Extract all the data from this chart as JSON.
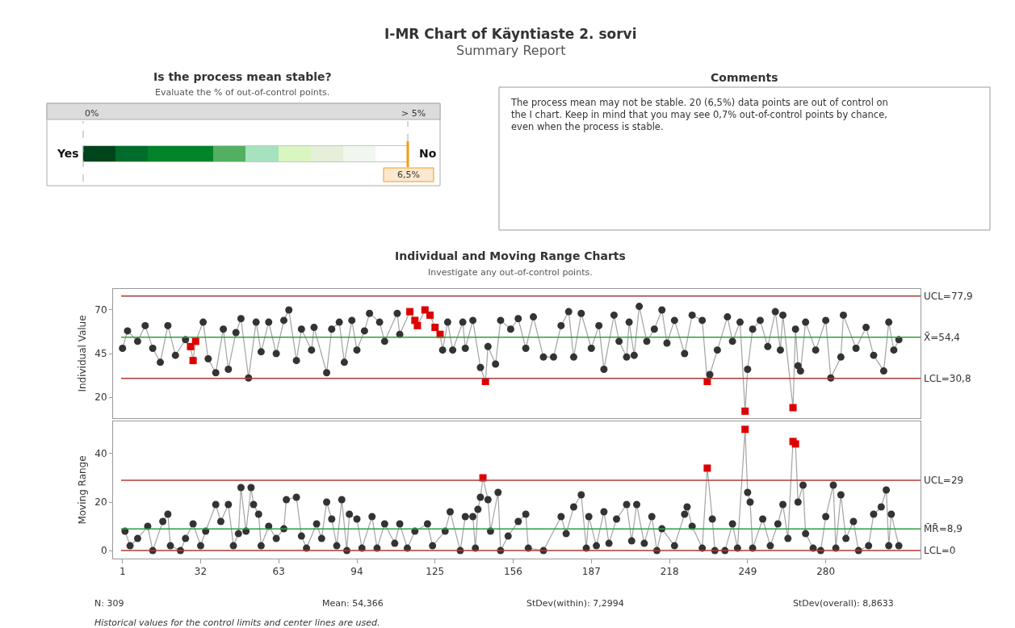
{
  "chart_data": [
    {
      "type": "other",
      "title": "I-MR Chart of Käyntiaste 2. sorvi",
      "subtitle": "Summary Report"
    },
    {
      "type": "other",
      "title": "Is the process mean stable?",
      "subtitle": "Evaluate the % of out-of-control points.",
      "annotations": [
        "0%",
        "> 5%",
        "Yes",
        "No",
        "6,5%"
      ]
    },
    {
      "type": "other",
      "title": "Comments",
      "annotations": [
        "The process mean may not be stable. 20 (6,5%) data points are out of control on the I chart. Keep in mind that you may see 0,7% out-of-control points by chance, even when the process is stable."
      ]
    },
    {
      "type": "line",
      "title": "Individual and Moving Range Charts",
      "subtitle": "Investigate any out-of-control points.",
      "ylabel": "Individual Value",
      "xlim": [
        -2.75,
        317.6
      ],
      "ylim": [
        8,
        82
      ],
      "yticks": [
        20,
        45,
        70
      ],
      "tick_labels": "y",
      "marker": "circle",
      "line_style": "solid",
      "series": [
        {
          "color": "#333333",
          "x": [
            1,
            3,
            7,
            10,
            13,
            16,
            19,
            22,
            26,
            28,
            29,
            30,
            33,
            35,
            38,
            41,
            43,
            46,
            48,
            51,
            54,
            56,
            59,
            62,
            65,
            67,
            70,
            72,
            76,
            77,
            82,
            84,
            87,
            89,
            92,
            94,
            97,
            99,
            103,
            105,
            110,
            111,
            115,
            117,
            118,
            121,
            123,
            125,
            127,
            128,
            130,
            132,
            136,
            137,
            140,
            143,
            145,
            146,
            149,
            151,
            155,
            158,
            161,
            164,
            168,
            172,
            175,
            178,
            180,
            183,
            187,
            190,
            192,
            196,
            198,
            201,
            202,
            204,
            206,
            209,
            212,
            215,
            217,
            220,
            224,
            227,
            231,
            233,
            234,
            237,
            241,
            243,
            246,
            248,
            249,
            251,
            254,
            257,
            260,
            262,
            263,
            267,
            268,
            269,
            270,
            272,
            276,
            280,
            282,
            286,
            287,
            292,
            296,
            299,
            303,
            305,
            307,
            309
          ],
          "values": [
            48,
            58,
            52,
            61,
            48,
            40,
            61,
            44,
            53,
            49,
            41,
            52,
            63,
            42,
            34,
            59,
            36,
            57,
            65,
            31,
            63,
            46,
            63,
            45,
            64,
            70,
            41,
            59,
            47,
            60,
            34,
            59,
            63,
            40,
            64,
            47,
            58,
            68,
            63,
            52,
            68,
            56,
            69,
            64,
            61,
            70,
            67,
            60,
            56,
            47,
            63,
            47,
            63,
            48,
            64,
            37,
            29,
            49,
            39,
            64,
            59,
            65,
            48,
            66,
            43,
            43,
            61,
            69,
            43,
            68,
            48,
            61,
            36,
            67,
            52,
            43,
            63,
            44,
            72,
            52,
            59,
            70,
            51,
            64,
            45,
            67,
            64,
            29,
            33,
            47,
            66,
            52,
            63,
            12,
            36,
            59,
            64,
            49,
            69,
            47,
            67,
            14,
            59,
            38,
            35,
            63,
            47,
            64,
            31,
            43,
            67,
            48,
            60,
            44,
            35,
            63,
            47,
            53
          ],
          "colors": [
            "#333333",
            "#333333",
            "#333333",
            "#333333",
            "#333333",
            "#333333",
            "#333333",
            "#333333",
            "#333333",
            "#dd0000",
            "#dd0000",
            "#dd0000",
            "#333333",
            "#333333",
            "#333333",
            "#333333",
            "#333333",
            "#333333",
            "#333333",
            "#333333",
            "#333333",
            "#333333",
            "#333333",
            "#333333",
            "#333333",
            "#333333",
            "#333333",
            "#333333",
            "#333333",
            "#333333",
            "#333333",
            "#333333",
            "#333333",
            "#333333",
            "#333333",
            "#333333",
            "#333333",
            "#333333",
            "#333333",
            "#333333",
            "#333333",
            "#333333",
            "#dd0000",
            "#dd0000",
            "#dd0000",
            "#dd0000",
            "#dd0000",
            "#dd0000",
            "#dd0000",
            "#333333",
            "#333333",
            "#333333",
            "#333333",
            "#333333",
            "#333333",
            "#333333",
            "#dd0000",
            "#333333",
            "#333333",
            "#333333",
            "#333333",
            "#333333",
            "#333333",
            "#333333",
            "#333333",
            "#333333",
            "#333333",
            "#333333",
            "#333333",
            "#333333",
            "#333333",
            "#333333",
            "#333333",
            "#333333",
            "#333333",
            "#333333",
            "#333333",
            "#333333",
            "#333333",
            "#333333",
            "#333333",
            "#333333",
            "#333333",
            "#333333",
            "#333333",
            "#333333",
            "#333333",
            "#dd0000",
            "#333333",
            "#333333",
            "#333333",
            "#333333",
            "#333333",
            "#dd0000",
            "#333333",
            "#333333",
            "#333333",
            "#333333",
            "#333333",
            "#333333",
            "#333333",
            "#dd0000",
            "#333333",
            "#333333",
            "#333333",
            "#333333",
            "#333333",
            "#333333",
            "#333333",
            "#333333",
            "#333333",
            "#333333",
            "#333333",
            "#333333",
            "#333333",
            "#333333",
            "#333333",
            "#333333"
          ]
        }
      ],
      "ref_lines": [
        {
          "axis": "y",
          "value": 77.9,
          "label": "UCL=77,9",
          "color": "#b03a3a"
        },
        {
          "axis": "y",
          "value": 54.4,
          "label": "X̄=54,4",
          "color": "#2e9e3e"
        },
        {
          "axis": "y",
          "value": 30.8,
          "label": "LCL=30,8",
          "color": "#b03a3a"
        }
      ]
    },
    {
      "type": "line",
      "ylabel": "Moving Range",
      "xlim": [
        -2.75,
        317.6
      ],
      "xticks": [
        1,
        32,
        63,
        94,
        125,
        156,
        187,
        218,
        249,
        280
      ],
      "ylim": [
        -3.3,
        53.3
      ],
      "yticks": [
        0,
        20,
        40
      ],
      "marker": "circle",
      "line_style": "solid",
      "series": [
        {
          "color": "#333333",
          "x": [
            2,
            4,
            7,
            11,
            13,
            17,
            19,
            20,
            24,
            26,
            29,
            32,
            34,
            38,
            40,
            43,
            45,
            47,
            48,
            50,
            52,
            53,
            55,
            56,
            59,
            62,
            65,
            66,
            70,
            72,
            74,
            78,
            80,
            82,
            84,
            86,
            88,
            90,
            91,
            94,
            96,
            100,
            102,
            105,
            109,
            111,
            114,
            117,
            122,
            124,
            129,
            131,
            135,
            137,
            140,
            141,
            142,
            143,
            144,
            146,
            147,
            150,
            151,
            154,
            158,
            161,
            162,
            168,
            175,
            177,
            180,
            183,
            185,
            186,
            189,
            192,
            194,
            197,
            201,
            203,
            205,
            208,
            211,
            213,
            215,
            220,
            224,
            225,
            227,
            231,
            233,
            235,
            236,
            240,
            243,
            245,
            248,
            249,
            250,
            251,
            255,
            258,
            261,
            263,
            265,
            267,
            268,
            269,
            271,
            272,
            275,
            278,
            280,
            283,
            284,
            286,
            288,
            291,
            293,
            297,
            299,
            302,
            304,
            305,
            306,
            309
          ],
          "values": [
            8,
            2,
            5,
            10,
            0,
            12,
            15,
            2,
            0,
            5,
            11,
            2,
            8,
            19,
            12,
            19,
            2,
            7,
            26,
            8,
            26,
            19,
            15,
            2,
            10,
            5,
            9,
            21,
            22,
            6,
            1,
            11,
            5,
            20,
            13,
            2,
            21,
            0,
            15,
            13,
            1,
            14,
            1,
            11,
            3,
            11,
            1,
            8,
            11,
            2,
            8,
            16,
            0,
            14,
            14,
            1,
            17,
            22,
            30,
            21,
            8,
            24,
            0,
            6,
            12,
            15,
            1,
            0,
            14,
            7,
            18,
            23,
            1,
            14,
            2,
            16,
            3,
            13,
            19,
            4,
            19,
            3,
            14,
            0,
            9,
            2,
            15,
            18,
            10,
            1,
            34,
            13,
            0,
            0,
            11,
            1,
            50,
            24,
            20,
            1,
            13,
            2,
            11,
            19,
            5,
            45,
            44,
            20,
            27,
            7,
            1,
            0,
            14,
            27,
            1,
            23,
            5,
            12,
            0,
            2,
            15,
            18,
            25,
            2,
            15,
            2
          ],
          "colors": [
            "#333333",
            "#333333",
            "#333333",
            "#333333",
            "#333333",
            "#333333",
            "#333333",
            "#333333",
            "#333333",
            "#333333",
            "#333333",
            "#333333",
            "#333333",
            "#333333",
            "#333333",
            "#333333",
            "#333333",
            "#333333",
            "#333333",
            "#333333",
            "#333333",
            "#333333",
            "#333333",
            "#333333",
            "#333333",
            "#333333",
            "#333333",
            "#333333",
            "#333333",
            "#333333",
            "#333333",
            "#333333",
            "#333333",
            "#333333",
            "#333333",
            "#333333",
            "#333333",
            "#333333",
            "#333333",
            "#333333",
            "#333333",
            "#333333",
            "#333333",
            "#333333",
            "#333333",
            "#333333",
            "#333333",
            "#333333",
            "#333333",
            "#333333",
            "#333333",
            "#333333",
            "#333333",
            "#333333",
            "#333333",
            "#333333",
            "#333333",
            "#333333",
            "#dd0000",
            "#333333",
            "#333333",
            "#333333",
            "#333333",
            "#333333",
            "#333333",
            "#333333",
            "#333333",
            "#333333",
            "#333333",
            "#333333",
            "#333333",
            "#333333",
            "#333333",
            "#333333",
            "#333333",
            "#333333",
            "#333333",
            "#333333",
            "#333333",
            "#333333",
            "#333333",
            "#333333",
            "#333333",
            "#333333",
            "#333333",
            "#333333",
            "#333333",
            "#333333",
            "#333333",
            "#333333",
            "#dd0000",
            "#333333",
            "#333333",
            "#333333",
            "#333333",
            "#333333",
            "#dd0000",
            "#333333",
            "#333333",
            "#333333",
            "#333333",
            "#333333",
            "#333333",
            "#333333",
            "#333333",
            "#dd0000",
            "#dd0000",
            "#333333",
            "#333333",
            "#333333",
            "#333333",
            "#333333",
            "#333333",
            "#333333",
            "#333333",
            "#333333",
            "#333333",
            "#333333",
            "#333333",
            "#333333",
            "#333333",
            "#333333",
            "#333333",
            "#333333",
            "#333333",
            "#333333"
          ]
        }
      ],
      "ref_lines": [
        {
          "axis": "y",
          "value": 29,
          "label": "UCL=29",
          "color": "#b03a3a"
        },
        {
          "axis": "y",
          "value": 8.9,
          "label": "M̄R̄=8,9",
          "color": "#2e9e3e"
        },
        {
          "axis": "y",
          "value": 0,
          "label": "LCL=0",
          "color": "#b03a3a"
        }
      ],
      "annotations": [
        "N: 309",
        "Mean: 54,366",
        "StDev(within): 7,2994",
        "StDev(overall): 8,8633",
        "Historical values for the control limits and center lines are used."
      ]
    }
  ]
}
